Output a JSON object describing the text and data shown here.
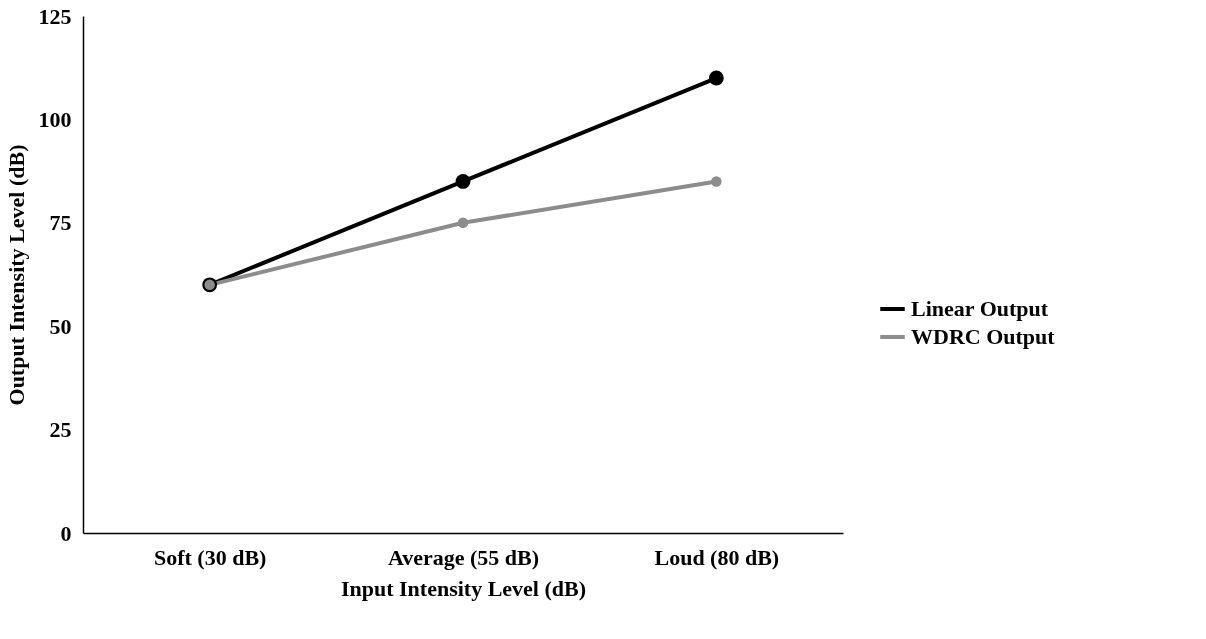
{
  "chart_data": {
    "type": "line",
    "xlabel": "Input Intensity Level (dB)",
    "ylabel": "Output Intensity Level (dB)",
    "categories": [
      "Soft (30 dB)",
      "Average (55 dB)",
      "Loud (80 dB)"
    ],
    "series": [
      {
        "name": "Linear Output",
        "color": "#000000",
        "values": [
          60,
          85,
          110
        ]
      },
      {
        "name": "WDRC Output",
        "color": "#8c8c8c",
        "values": [
          60,
          75,
          85
        ]
      }
    ],
    "ylim": [
      0,
      125
    ],
    "yticks": [
      0,
      25,
      50,
      75,
      100,
      125
    ],
    "grid": false,
    "legend": "right",
    "marker": "circle",
    "line_style": "solid"
  }
}
